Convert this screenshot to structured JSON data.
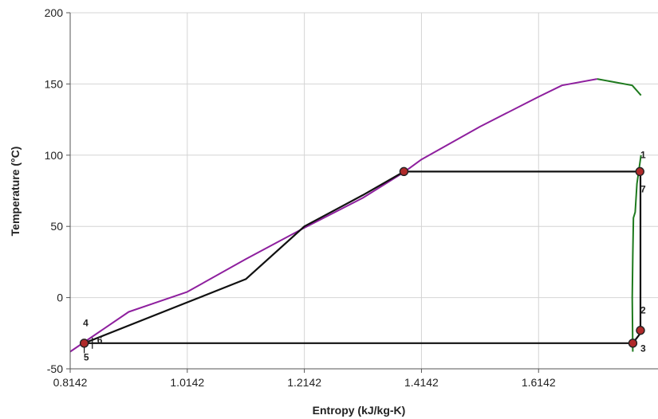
{
  "chart_data": {
    "type": "line",
    "xlabel": "Entropy (kJ/kg-K)",
    "ylabel": "Temperature (°C)",
    "xlim": [
      0.8142,
      1.8182
    ],
    "ylim": [
      -50,
      200
    ],
    "xticks": [
      "0.8142",
      "1.0142",
      "1.2142",
      "1.4142",
      "1.6142"
    ],
    "yticks": [
      "200",
      "150",
      "100",
      "50",
      "0",
      "-50"
    ],
    "grid": true,
    "colors": {
      "saturation_liquid": "#8e1f9e",
      "saturation_vapor": "#1e7a1e",
      "cycle": "#111111",
      "point_fill": "#b02a2a",
      "grid": "#d4d4d4",
      "axis": "#555555"
    },
    "series": [
      {
        "key": "saturation_liquid",
        "points": [
          [
            0.8142,
            -38
          ],
          [
            0.9142,
            -10
          ],
          [
            1.0142,
            4
          ],
          [
            1.1142,
            27
          ],
          [
            1.2142,
            49
          ],
          [
            1.3142,
            70
          ],
          [
            1.3842,
            88
          ],
          [
            1.4142,
            97
          ],
          [
            1.5142,
            120
          ],
          [
            1.6142,
            141
          ],
          [
            1.6542,
            149
          ],
          [
            1.7142,
            153.5
          ]
        ]
      },
      {
        "key": "saturation_vapor",
        "points": [
          [
            1.7142,
            153.5
          ],
          [
            1.7742,
            149
          ],
          [
            1.7892,
            142
          ]
        ]
      },
      {
        "key": "saturation_vapor",
        "points": [
          [
            1.7892,
            100
          ],
          [
            1.7822,
            80
          ],
          [
            1.7792,
            60
          ],
          [
            1.7762,
            56
          ],
          [
            1.7752,
            30
          ],
          [
            1.7742,
            0
          ],
          [
            1.7752,
            -38
          ]
        ]
      },
      {
        "key": "cycle",
        "points": [
          [
            0.8382,
            -32
          ],
          [
            1.1142,
            13
          ],
          [
            1.2142,
            50
          ],
          [
            1.3142,
            72
          ],
          [
            1.3842,
            88.5
          ],
          [
            1.7872,
            88.5
          ],
          [
            1.7882,
            85
          ],
          [
            1.7882,
            -25
          ],
          [
            1.7752,
            -32
          ],
          [
            0.8382,
            -32
          ]
        ]
      }
    ],
    "markers": [
      [
        0.8382,
        -32
      ],
      [
        1.3842,
        88.5
      ],
      [
        1.7872,
        88.5
      ],
      [
        1.7752,
        -32
      ],
      [
        1.7882,
        -23
      ]
    ],
    "point_labels": [
      {
        "text": "1",
        "x": 1.7882,
        "y": 98
      },
      {
        "text": "2",
        "x": 1.7882,
        "y": -11
      },
      {
        "text": "3",
        "x": 1.7882,
        "y": -38
      },
      {
        "text": "4",
        "x": 0.8362,
        "y": -20
      },
      {
        "text": "5",
        "x": 0.8372,
        "y": -44
      },
      {
        "text": "6",
        "x": 0.8602,
        "y": -32
      },
      {
        "text": "7",
        "x": 1.7882,
        "y": 74
      }
    ]
  }
}
